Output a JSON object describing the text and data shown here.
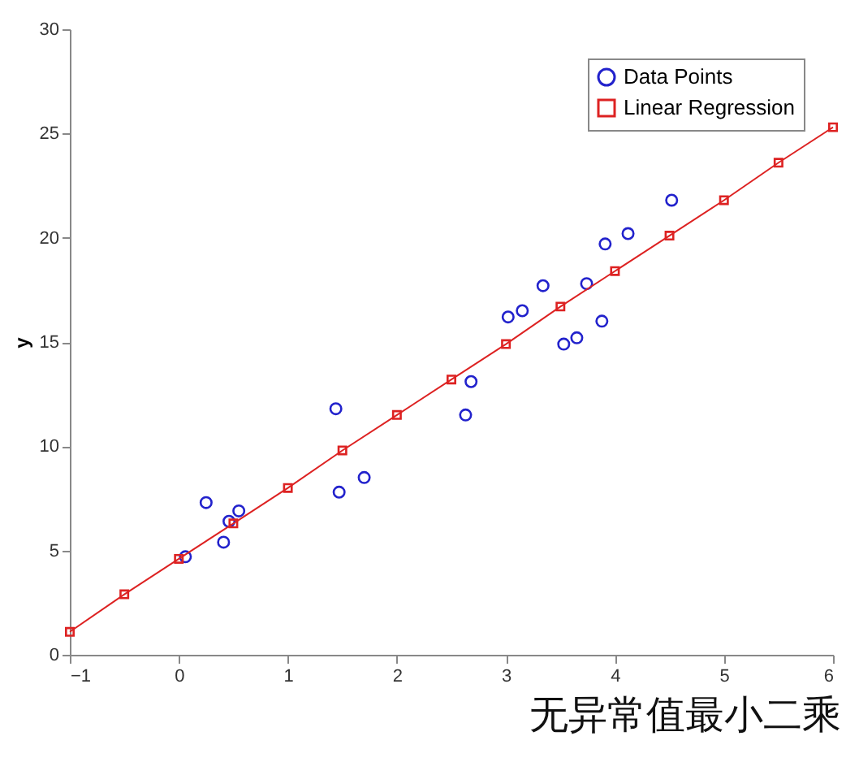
{
  "chart_data": {
    "type": "scatter",
    "title": "无异常值最小二乘",
    "ylabel": "y",
    "xlim": [
      -1,
      6
    ],
    "xticks": [
      -1,
      0,
      1,
      2,
      3,
      4,
      5,
      6
    ],
    "ylim": [
      0,
      30
    ],
    "yticks": [
      0,
      5,
      10,
      15,
      20,
      25,
      30
    ],
    "grid": false,
    "legend": "top right",
    "series": [
      {
        "name": "Data Points",
        "marker": "circle",
        "color": "#2222cc",
        "x": [
          0.06,
          0.25,
          0.41,
          0.46,
          0.55,
          1.44,
          1.47,
          1.7,
          2.63,
          2.68,
          3.02,
          3.15,
          3.34,
          3.53,
          3.65,
          3.74,
          3.88,
          3.91,
          4.12,
          4.52
        ],
        "values": [
          4.7,
          7.3,
          5.4,
          6.4,
          6.9,
          11.8,
          7.8,
          8.5,
          11.5,
          13.1,
          16.2,
          16.5,
          17.7,
          14.9,
          15.2,
          17.8,
          16.0,
          19.7,
          20.2,
          21.8
        ]
      },
      {
        "name": "Linear Regression",
        "type": "line",
        "marker": "square",
        "color": "#dd2222",
        "x": [
          -1,
          -0.5,
          0,
          0.5,
          1,
          1.5,
          2,
          2.5,
          3,
          3.5,
          4,
          4.5,
          5,
          5.5,
          6
        ],
        "values": [
          1.1,
          2.9,
          4.6,
          6.3,
          8.0,
          9.8,
          11.5,
          13.2,
          14.9,
          16.7,
          18.4,
          20.1,
          21.8,
          23.6,
          25.3
        ]
      }
    ]
  }
}
